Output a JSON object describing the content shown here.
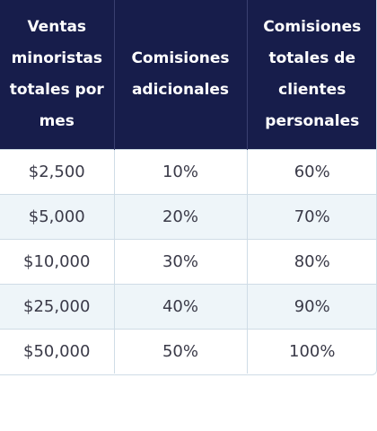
{
  "table": {
    "headers": [
      "Ventas minoristas totales por mes",
      "Comisiones adicionales",
      "Comisiones totales de clientes personales"
    ],
    "rows": [
      [
        "$2,500",
        "10%",
        "60%"
      ],
      [
        "$5,000",
        "20%",
        "70%"
      ],
      [
        "$10,000",
        "30%",
        "80%"
      ],
      [
        "$25,000",
        "40%",
        "90%"
      ],
      [
        "$50,000",
        "50%",
        "100%"
      ]
    ]
  },
  "colors": {
    "header_bg": "#171d4b",
    "header_text": "#ffffff",
    "stripe_bg": "#eef5f9",
    "border": "#cfdce6",
    "cell_text": "#3a3a48"
  }
}
